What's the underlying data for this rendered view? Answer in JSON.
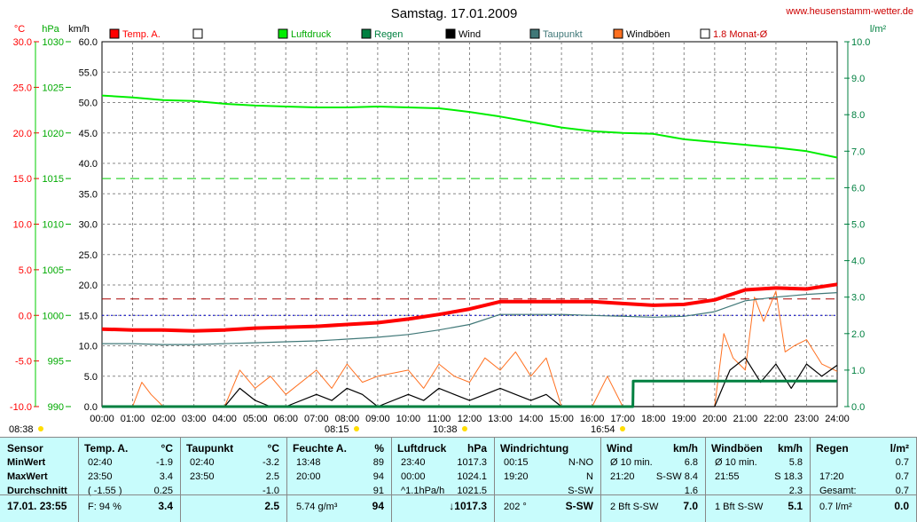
{
  "title": "Samstag. 17.01.2009",
  "site": "www.heusenstamm-wetter.de",
  "colors": {
    "temp": "#ff0000",
    "pressure": "#00ee00",
    "rain": "#008040",
    "wind": "#000000",
    "dew": "#407878",
    "gust": "#ff7020",
    "grid": "#888888"
  },
  "axis_units": {
    "temp": "°C",
    "pressure": "hPa",
    "wind": "km/h",
    "rain": "l/m²"
  },
  "legend": [
    {
      "label": "Temp. A.",
      "color": "#ff0000",
      "text_color": "#ff0000"
    },
    {
      "label": "",
      "color": "#ffffff",
      "text_color": "#000000"
    },
    {
      "label": "Luftdruck",
      "color": "#00ee00",
      "text_color": "#00aa00"
    },
    {
      "label": "Regen",
      "color": "#008040",
      "text_color": "#008040"
    },
    {
      "label": "Wind",
      "color": "#000000",
      "text_color": "#000000"
    },
    {
      "label": "Taupunkt",
      "color": "#407878",
      "text_color": "#407878"
    },
    {
      "label": "Windböen",
      "color": "#ff7020",
      "text_color": "#000000"
    },
    {
      "label": "1.8 Monat-Ø",
      "color": "#ffffff",
      "text_color": "#cc0000"
    }
  ],
  "sun_labels": [
    "08:38",
    "08:15",
    "10:38",
    "16:54"
  ],
  "chart_data": {
    "type": "line",
    "x_ticks": [
      "00:00",
      "01:00",
      "02:00",
      "03:00",
      "04:00",
      "05:00",
      "06:00",
      "07:00",
      "08:00",
      "09:00",
      "10:00",
      "11:00",
      "12:00",
      "13:00",
      "14:00",
      "15:00",
      "16:00",
      "17:00",
      "18:00",
      "19:00",
      "20:00",
      "21:00",
      "22:00",
      "23:00",
      "24:00"
    ],
    "axes": {
      "temp": {
        "ticks": [
          "30.0",
          "25.0",
          "20.0",
          "15.0",
          "10.0",
          "5.0",
          "0.0",
          "-5.0",
          "-10.0"
        ],
        "range": [
          -10,
          30
        ]
      },
      "pressure": {
        "ticks": [
          "1030",
          "1025",
          "1020",
          "1015",
          "1010",
          "1005",
          "1000",
          "995",
          "990"
        ],
        "range": [
          990,
          1030
        ]
      },
      "wind": {
        "ticks": [
          "60.0",
          "55.0",
          "50.0",
          "45.0",
          "40.0",
          "35.0",
          "30.0",
          "25.0",
          "20.0",
          "15.0",
          "10.0",
          "5.0",
          "0.0"
        ],
        "range": [
          0,
          60
        ]
      },
      "rain": {
        "ticks": [
          "10.0",
          "9.0",
          "8.0",
          "7.0",
          "6.0",
          "5.0",
          "4.0",
          "3.0",
          "2.0",
          "1.0",
          "0.0"
        ],
        "range": [
          0,
          10
        ]
      }
    },
    "reference_lines": {
      "temp_monthly_avg": 1.8,
      "pressure_ref": 1015,
      "temp_zero": 0
    },
    "series": [
      {
        "name": "Temp. A.",
        "axis": "temp",
        "x": [
          0,
          1,
          2,
          3,
          4,
          5,
          6,
          7,
          8,
          9,
          10,
          11,
          12,
          13,
          14,
          15,
          16,
          17,
          18,
          19,
          20,
          21,
          22,
          23,
          24
        ],
        "values": [
          -1.5,
          -1.6,
          -1.6,
          -1.7,
          -1.6,
          -1.4,
          -1.3,
          -1.2,
          -1.0,
          -0.8,
          -0.4,
          0.1,
          0.7,
          1.5,
          1.5,
          1.5,
          1.5,
          1.3,
          1.1,
          1.2,
          1.7,
          2.8,
          3.0,
          2.9,
          3.4
        ]
      },
      {
        "name": "Taupunkt",
        "axis": "temp",
        "x": [
          0,
          1,
          2,
          3,
          4,
          5,
          6,
          7,
          8,
          9,
          10,
          11,
          12,
          13,
          14,
          15,
          16,
          17,
          18,
          19,
          20,
          21,
          22,
          23,
          24
        ],
        "values": [
          -3.1,
          -3.1,
          -3.2,
          -3.2,
          -3.1,
          -3.0,
          -2.9,
          -2.8,
          -2.6,
          -2.4,
          -2.1,
          -1.6,
          -1.0,
          0.1,
          0.1,
          0.1,
          0.0,
          -0.1,
          -0.2,
          -0.1,
          0.4,
          1.6,
          2.0,
          2.3,
          2.5
        ]
      },
      {
        "name": "Luftdruck",
        "axis": "pressure",
        "x": [
          0,
          1,
          2,
          3,
          4,
          5,
          6,
          7,
          8,
          9,
          10,
          11,
          12,
          13,
          14,
          15,
          16,
          17,
          18,
          19,
          20,
          21,
          22,
          23,
          24
        ],
        "values": [
          1024.1,
          1023.9,
          1023.6,
          1023.5,
          1023.2,
          1023.0,
          1022.9,
          1022.8,
          1022.8,
          1022.9,
          1022.8,
          1022.7,
          1022.3,
          1021.8,
          1021.2,
          1020.6,
          1020.2,
          1020.0,
          1019.9,
          1019.3,
          1019.0,
          1018.7,
          1018.4,
          1018.0,
          1017.3
        ]
      },
      {
        "name": "Regen",
        "axis": "rain",
        "x": [
          0,
          17.33,
          17.34,
          19.99,
          20.0,
          24
        ],
        "values": [
          0,
          0,
          0.7,
          0.7,
          0.7,
          0.7
        ]
      },
      {
        "name": "Wind",
        "axis": "wind",
        "x": [
          0,
          4,
          4.5,
          5,
          5.5,
          6,
          7,
          7.5,
          8,
          8.5,
          9,
          10,
          10.5,
          11,
          11.5,
          12,
          12.5,
          13,
          13.5,
          14,
          14.5,
          15,
          16,
          17,
          18,
          19,
          20,
          20.5,
          21,
          21.5,
          22,
          22.5,
          23,
          23.5,
          24
        ],
        "values": [
          0,
          0,
          3,
          1,
          0,
          0,
          2,
          1,
          3,
          2,
          0,
          2,
          1,
          3,
          2,
          1,
          2,
          3,
          2,
          1,
          2,
          0,
          0,
          0,
          0,
          0,
          0,
          6,
          8,
          4,
          7,
          3,
          7,
          5,
          6.8
        ]
      },
      {
        "name": "Windböen",
        "axis": "wind",
        "x": [
          0,
          1,
          1.3,
          1.6,
          2,
          4,
          4.5,
          5,
          5.5,
          6,
          7,
          7.5,
          8,
          8.5,
          9,
          10,
          10.5,
          11,
          11.5,
          12,
          12.5,
          13,
          13.5,
          14,
          14.5,
          15,
          16,
          16.5,
          17,
          18,
          19,
          20,
          20.3,
          20.6,
          21,
          21.3,
          21.6,
          22,
          22.3,
          22.6,
          23,
          23.5,
          24
        ],
        "values": [
          0,
          0,
          4,
          2,
          0,
          0,
          6,
          3,
          5,
          2,
          6,
          3,
          7,
          4,
          5,
          6,
          3,
          7,
          5,
          4,
          8,
          6,
          9,
          5,
          8,
          0,
          0,
          5,
          0,
          0,
          0,
          0,
          12,
          8,
          6,
          18,
          14,
          19,
          9,
          10,
          11,
          7,
          5.8
        ]
      }
    ]
  },
  "table": {
    "sensor": {
      "header": "Sensor",
      "rows": [
        "MinWert",
        "MaxWert",
        "Durchschnitt"
      ],
      "foot": "17.01. 23:55"
    },
    "temp": {
      "header": "Temp. A.",
      "unit": "°C",
      "rows": [
        [
          "02:40",
          "-1.9"
        ],
        [
          "23:50",
          "3.4"
        ],
        [
          "( -1.55 )",
          "0.25"
        ]
      ],
      "foot_left": "F: 94 %",
      "foot": "3.4"
    },
    "dew": {
      "header": "Taupunkt",
      "unit": "°C",
      "rows": [
        [
          "02:40",
          "-3.2"
        ],
        [
          "23:50",
          "2.5"
        ],
        [
          "",
          "-1.0"
        ]
      ],
      "foot": "2.5"
    },
    "hum": {
      "header": "Feuchte A.",
      "unit": "%",
      "rows": [
        [
          "13:48",
          "89"
        ],
        [
          "20:00",
          "94"
        ],
        [
          "",
          "91"
        ]
      ],
      "foot_left": "5.74 g/m³",
      "foot": "94"
    },
    "press": {
      "header": "Luftdruck",
      "unit": "hPa",
      "rows": [
        [
          "23:40",
          "1017.3"
        ],
        [
          "00:00",
          "1024.1"
        ],
        [
          "^1.1hPa/h",
          "1021.5"
        ]
      ],
      "foot": "↓1017.3"
    },
    "wdir": {
      "header": "Windrichtung",
      "rows": [
        [
          "00:15",
          "N-NO"
        ],
        [
          "19:20",
          "N"
        ],
        [
          "",
          "S-SW"
        ]
      ],
      "foot_left": "202 °",
      "foot": "S-SW"
    },
    "wind": {
      "header": "Wind",
      "unit": "km/h",
      "rows": [
        [
          "Ø 10 min.",
          "6.8"
        ],
        [
          "21:20",
          "S-SW 8.4"
        ],
        [
          "",
          "1.6"
        ]
      ],
      "foot_left": "2 Bft S-SW",
      "foot": "7.0"
    },
    "gust": {
      "header": "Windböen",
      "unit": "km/h",
      "rows": [
        [
          "Ø 10 min.",
          "5.8"
        ],
        [
          "21:55",
          "S 18.3"
        ],
        [
          "",
          "2.3"
        ]
      ],
      "foot_left": "1 Bft S-SW",
      "foot": "5.1"
    },
    "rain": {
      "header": "Regen",
      "unit": "l/m²",
      "rows": [
        [
          "",
          "0.7"
        ],
        [
          "17:20",
          "0.7"
        ],
        [
          "Gesamt:",
          "0.7"
        ]
      ],
      "foot_left": "0.7 l/m²",
      "foot": "0.0"
    }
  }
}
